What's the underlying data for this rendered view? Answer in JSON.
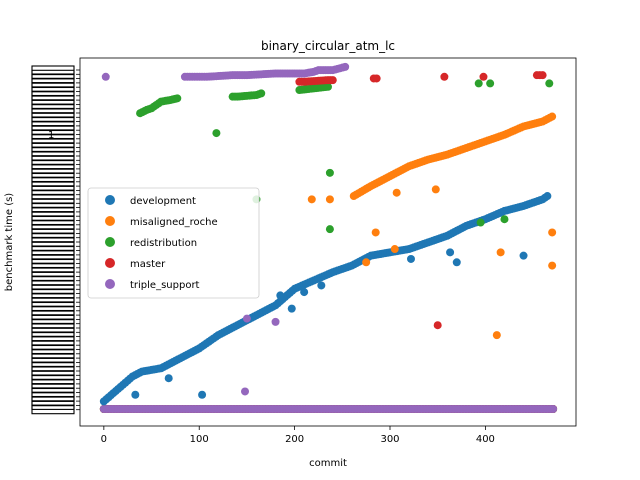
{
  "chart_data": {
    "type": "scatter",
    "title": "binary_circular_atm_lc",
    "xlabel": "commit",
    "ylabel": "benchmark time (s)",
    "xlim": [
      -25,
      495
    ],
    "ylim": [
      0,
      1
    ],
    "x_ticks": [
      0,
      100,
      200,
      300,
      400
    ],
    "x_tick_labels": [
      "0",
      "100",
      "200",
      "300",
      "400"
    ],
    "y_tick_note_label": "1",
    "legend_position": "center-left",
    "series": [
      {
        "name": "development",
        "color": "#1f77b4",
        "trend": [
          [
            0,
            0.02
          ],
          [
            10,
            0.045
          ],
          [
            20,
            0.07
          ],
          [
            30,
            0.095
          ],
          [
            40,
            0.11
          ],
          [
            60,
            0.12
          ],
          [
            80,
            0.15
          ],
          [
            100,
            0.18
          ],
          [
            120,
            0.22
          ],
          [
            140,
            0.25
          ],
          [
            160,
            0.28
          ],
          [
            180,
            0.31
          ],
          [
            200,
            0.36
          ],
          [
            220,
            0.385
          ],
          [
            240,
            0.41
          ],
          [
            260,
            0.43
          ],
          [
            280,
            0.46
          ],
          [
            300,
            0.47
          ],
          [
            320,
            0.48
          ],
          [
            340,
            0.5
          ],
          [
            360,
            0.52
          ],
          [
            380,
            0.55
          ],
          [
            400,
            0.57
          ],
          [
            420,
            0.595
          ],
          [
            440,
            0.61
          ],
          [
            460,
            0.63
          ],
          [
            465,
            0.64
          ]
        ],
        "outliers": [
          [
            33,
            0.04
          ],
          [
            68,
            0.09
          ],
          [
            103,
            0.04
          ],
          [
            185,
            0.34
          ],
          [
            197,
            0.3
          ],
          [
            210,
            0.35
          ],
          [
            228,
            0.37
          ],
          [
            322,
            0.45
          ],
          [
            363,
            0.47
          ],
          [
            370,
            0.44
          ],
          [
            440,
            0.46
          ]
        ]
      },
      {
        "name": "misaligned_roche",
        "color": "#ff7f0e",
        "trend": [
          [
            262,
            0.64
          ],
          [
            280,
            0.67
          ],
          [
            300,
            0.7
          ],
          [
            320,
            0.73
          ],
          [
            340,
            0.75
          ],
          [
            360,
            0.765
          ],
          [
            380,
            0.785
          ],
          [
            400,
            0.805
          ],
          [
            420,
            0.825
          ],
          [
            440,
            0.85
          ],
          [
            460,
            0.865
          ],
          [
            470,
            0.88
          ]
        ],
        "outliers": [
          [
            218,
            0.63
          ],
          [
            237,
            0.63
          ],
          [
            275,
            0.44
          ],
          [
            285,
            0.53
          ],
          [
            305,
            0.48
          ],
          [
            307,
            0.65
          ],
          [
            348,
            0.66
          ],
          [
            416,
            0.47
          ],
          [
            412,
            0.22
          ],
          [
            470,
            0.43
          ],
          [
            470,
            0.53
          ]
        ]
      },
      {
        "name": "redistribution",
        "color": "#2ca02c",
        "trend": [
          [
            38,
            0.89
          ],
          [
            45,
            0.9
          ],
          [
            50,
            0.905
          ],
          [
            55,
            0.915
          ],
          [
            60,
            0.925
          ],
          [
            70,
            0.93
          ],
          [
            77,
            0.935
          ],
          [
            135,
            0.94
          ],
          [
            140,
            0.94
          ],
          [
            160,
            0.945
          ],
          [
            165,
            0.95
          ],
          [
            205,
            0.96
          ],
          [
            220,
            0.965
          ],
          [
            235,
            0.97
          ]
        ],
        "outliers": [
          [
            118,
            0.83
          ],
          [
            160,
            0.63
          ],
          [
            237,
            0.71
          ],
          [
            237,
            0.54
          ],
          [
            393,
            0.98
          ],
          [
            405,
            0.98
          ],
          [
            395,
            0.56
          ],
          [
            420,
            0.57
          ],
          [
            467,
            0.98
          ]
        ]
      },
      {
        "name": "master",
        "color": "#d62728",
        "trend": [
          [
            205,
            0.985
          ],
          [
            210,
            0.985
          ],
          [
            235,
            0.99
          ],
          [
            240,
            0.99
          ],
          [
            283,
            0.995
          ],
          [
            286,
            0.995
          ],
          [
            357,
            1.0
          ],
          [
            398,
            1.0
          ],
          [
            454,
            1.005
          ],
          [
            460,
            1.005
          ]
        ],
        "outliers": [
          [
            350,
            0.25
          ]
        ]
      },
      {
        "name": "triple_support",
        "color": "#9467bd",
        "trend": [
          [
            2,
            1.0
          ],
          [
            85,
            1.0
          ],
          [
            108,
            1.0
          ],
          [
            135,
            1.005
          ],
          [
            150,
            1.005
          ],
          [
            180,
            1.01
          ],
          [
            210,
            1.01
          ],
          [
            220,
            1.015
          ],
          [
            225,
            1.02
          ],
          [
            240,
            1.02
          ],
          [
            253,
            1.03
          ]
        ],
        "outliers": [
          [
            150,
            0.27
          ],
          [
            180,
            0.26
          ],
          [
            148,
            0.05
          ]
        ]
      }
    ],
    "baseline_band": {
      "x_range": [
        0,
        472
      ],
      "y": 0.0
    }
  }
}
